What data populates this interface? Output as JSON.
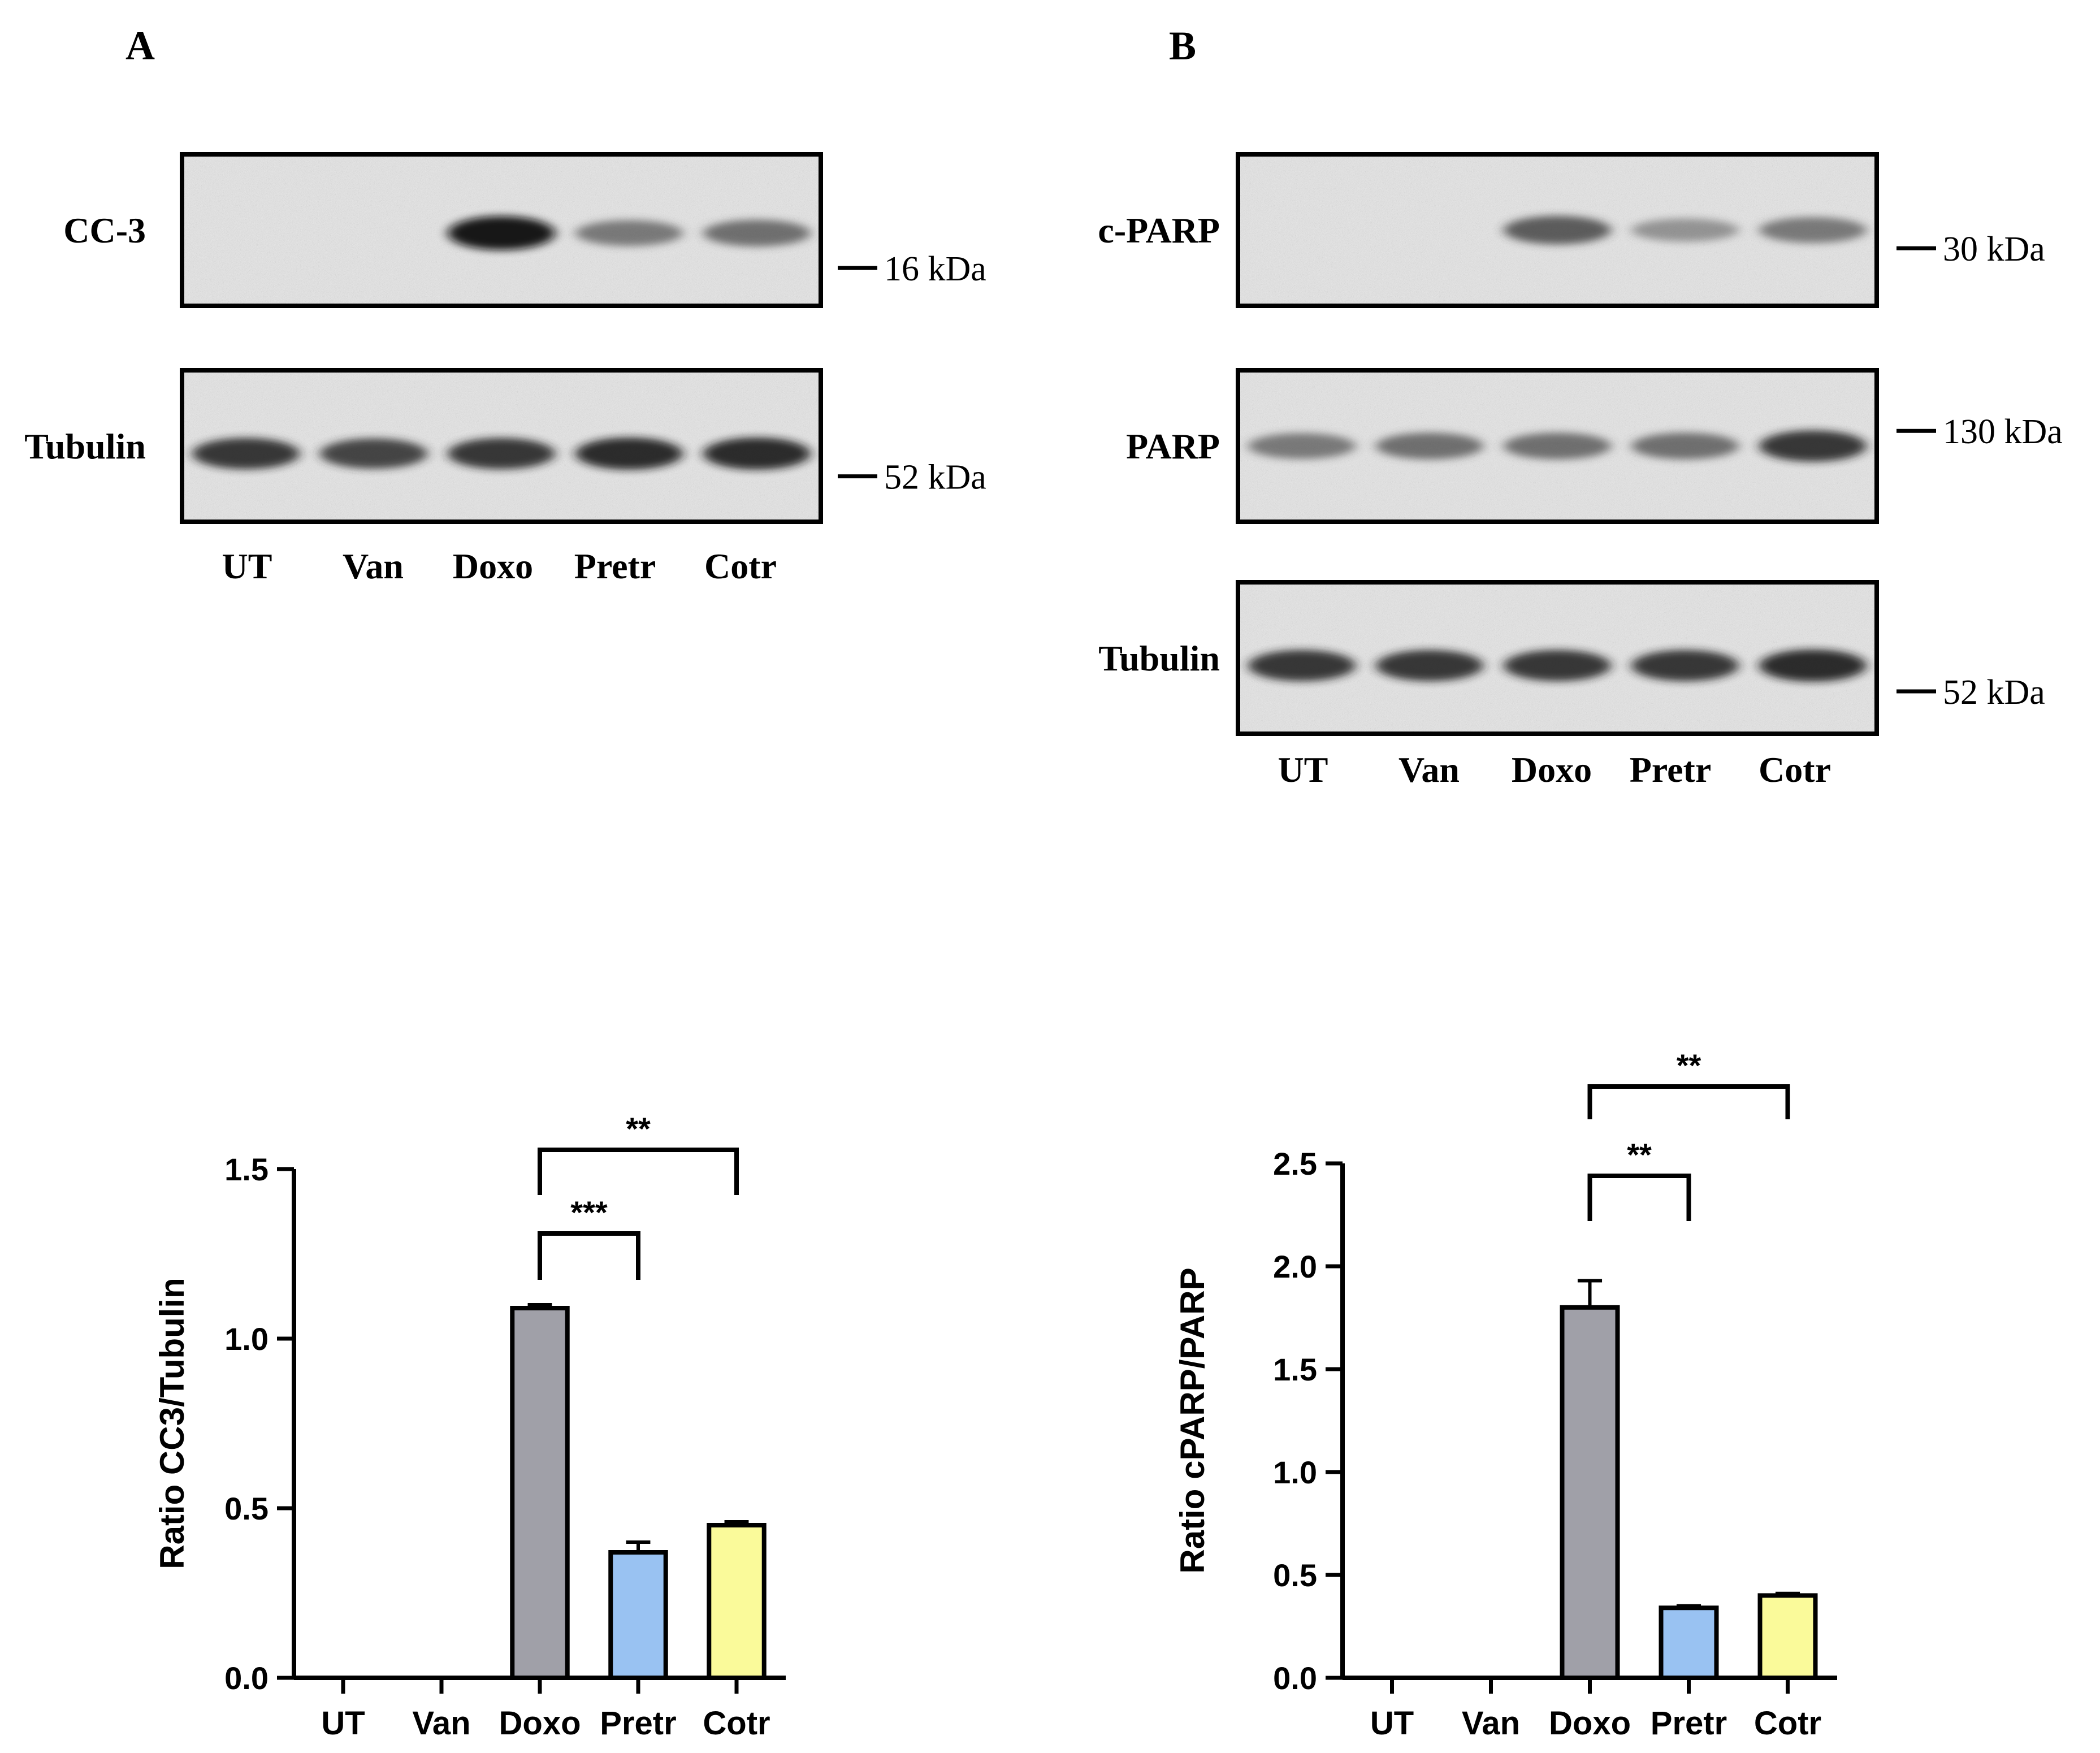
{
  "panels": {
    "A": {
      "letter": "A",
      "blots": [
        {
          "label": "CC-3",
          "marker": "16 kDa",
          "bands": [
            0,
            0,
            1.0,
            0.55,
            0.6
          ]
        },
        {
          "label": "Tubulin",
          "marker": "52 kDa",
          "bands": [
            0.85,
            0.8,
            0.85,
            0.9,
            0.9
          ]
        }
      ],
      "lanes": [
        "UT",
        "Van",
        "Doxo",
        "Pretr",
        "Cotr"
      ]
    },
    "B": {
      "letter": "B",
      "blots": [
        {
          "label": "c-PARP",
          "marker": "30 kDa",
          "bands": [
            0,
            0,
            0.7,
            0.4,
            0.55
          ]
        },
        {
          "label": "PARP",
          "marker": "130 kDa",
          "bands": [
            0.55,
            0.6,
            0.6,
            0.6,
            0.85
          ]
        },
        {
          "label": "Tubulin",
          "marker": "52 kDa",
          "bands": [
            0.85,
            0.85,
            0.85,
            0.85,
            0.9
          ]
        }
      ],
      "lanes": [
        "UT",
        "Van",
        "Doxo",
        "Pretr",
        "Cotr"
      ]
    }
  },
  "colors": {
    "doxo": "#a0a0a8",
    "pretr": "#99c2f2",
    "cotr": "#fafa9a"
  },
  "chart_data": [
    {
      "type": "bar",
      "categories": [
        "UT",
        "Van",
        "Doxo",
        "Pretr",
        "Cotr"
      ],
      "values": [
        0,
        0,
        1.09,
        0.37,
        0.45
      ],
      "errors": [
        0,
        0,
        0.01,
        0.03,
        0.01
      ],
      "ylabel": "Ratio CC3/Tubulin",
      "ylim": [
        0,
        1.5
      ],
      "yticks": [
        "0.0",
        "0.5",
        "1.0",
        "1.5"
      ],
      "ytick_values": [
        0,
        0.5,
        1.0,
        1.5
      ],
      "significance": [
        {
          "from": "Doxo",
          "to": "Pretr",
          "label": "***"
        },
        {
          "from": "Doxo",
          "to": "Cotr",
          "label": "**"
        }
      ]
    },
    {
      "type": "bar",
      "categories": [
        "UT",
        "Van",
        "Doxo",
        "Pretr",
        "Cotr"
      ],
      "values": [
        0,
        0,
        1.8,
        0.34,
        0.4
      ],
      "errors": [
        0,
        0,
        0.13,
        0.01,
        0.01
      ],
      "ylabel": "Ratio cPARP/PARP",
      "ylim": [
        0,
        2.5
      ],
      "yticks": [
        "0.0",
        "0.5",
        "1.0",
        "1.5",
        "2.0",
        "2.5"
      ],
      "ytick_values": [
        0,
        0.5,
        1.0,
        1.5,
        2.0,
        2.5
      ],
      "significance": [
        {
          "from": "Doxo",
          "to": "Pretr",
          "label": "**"
        },
        {
          "from": "Doxo",
          "to": "Cotr",
          "label": "**"
        }
      ]
    }
  ]
}
